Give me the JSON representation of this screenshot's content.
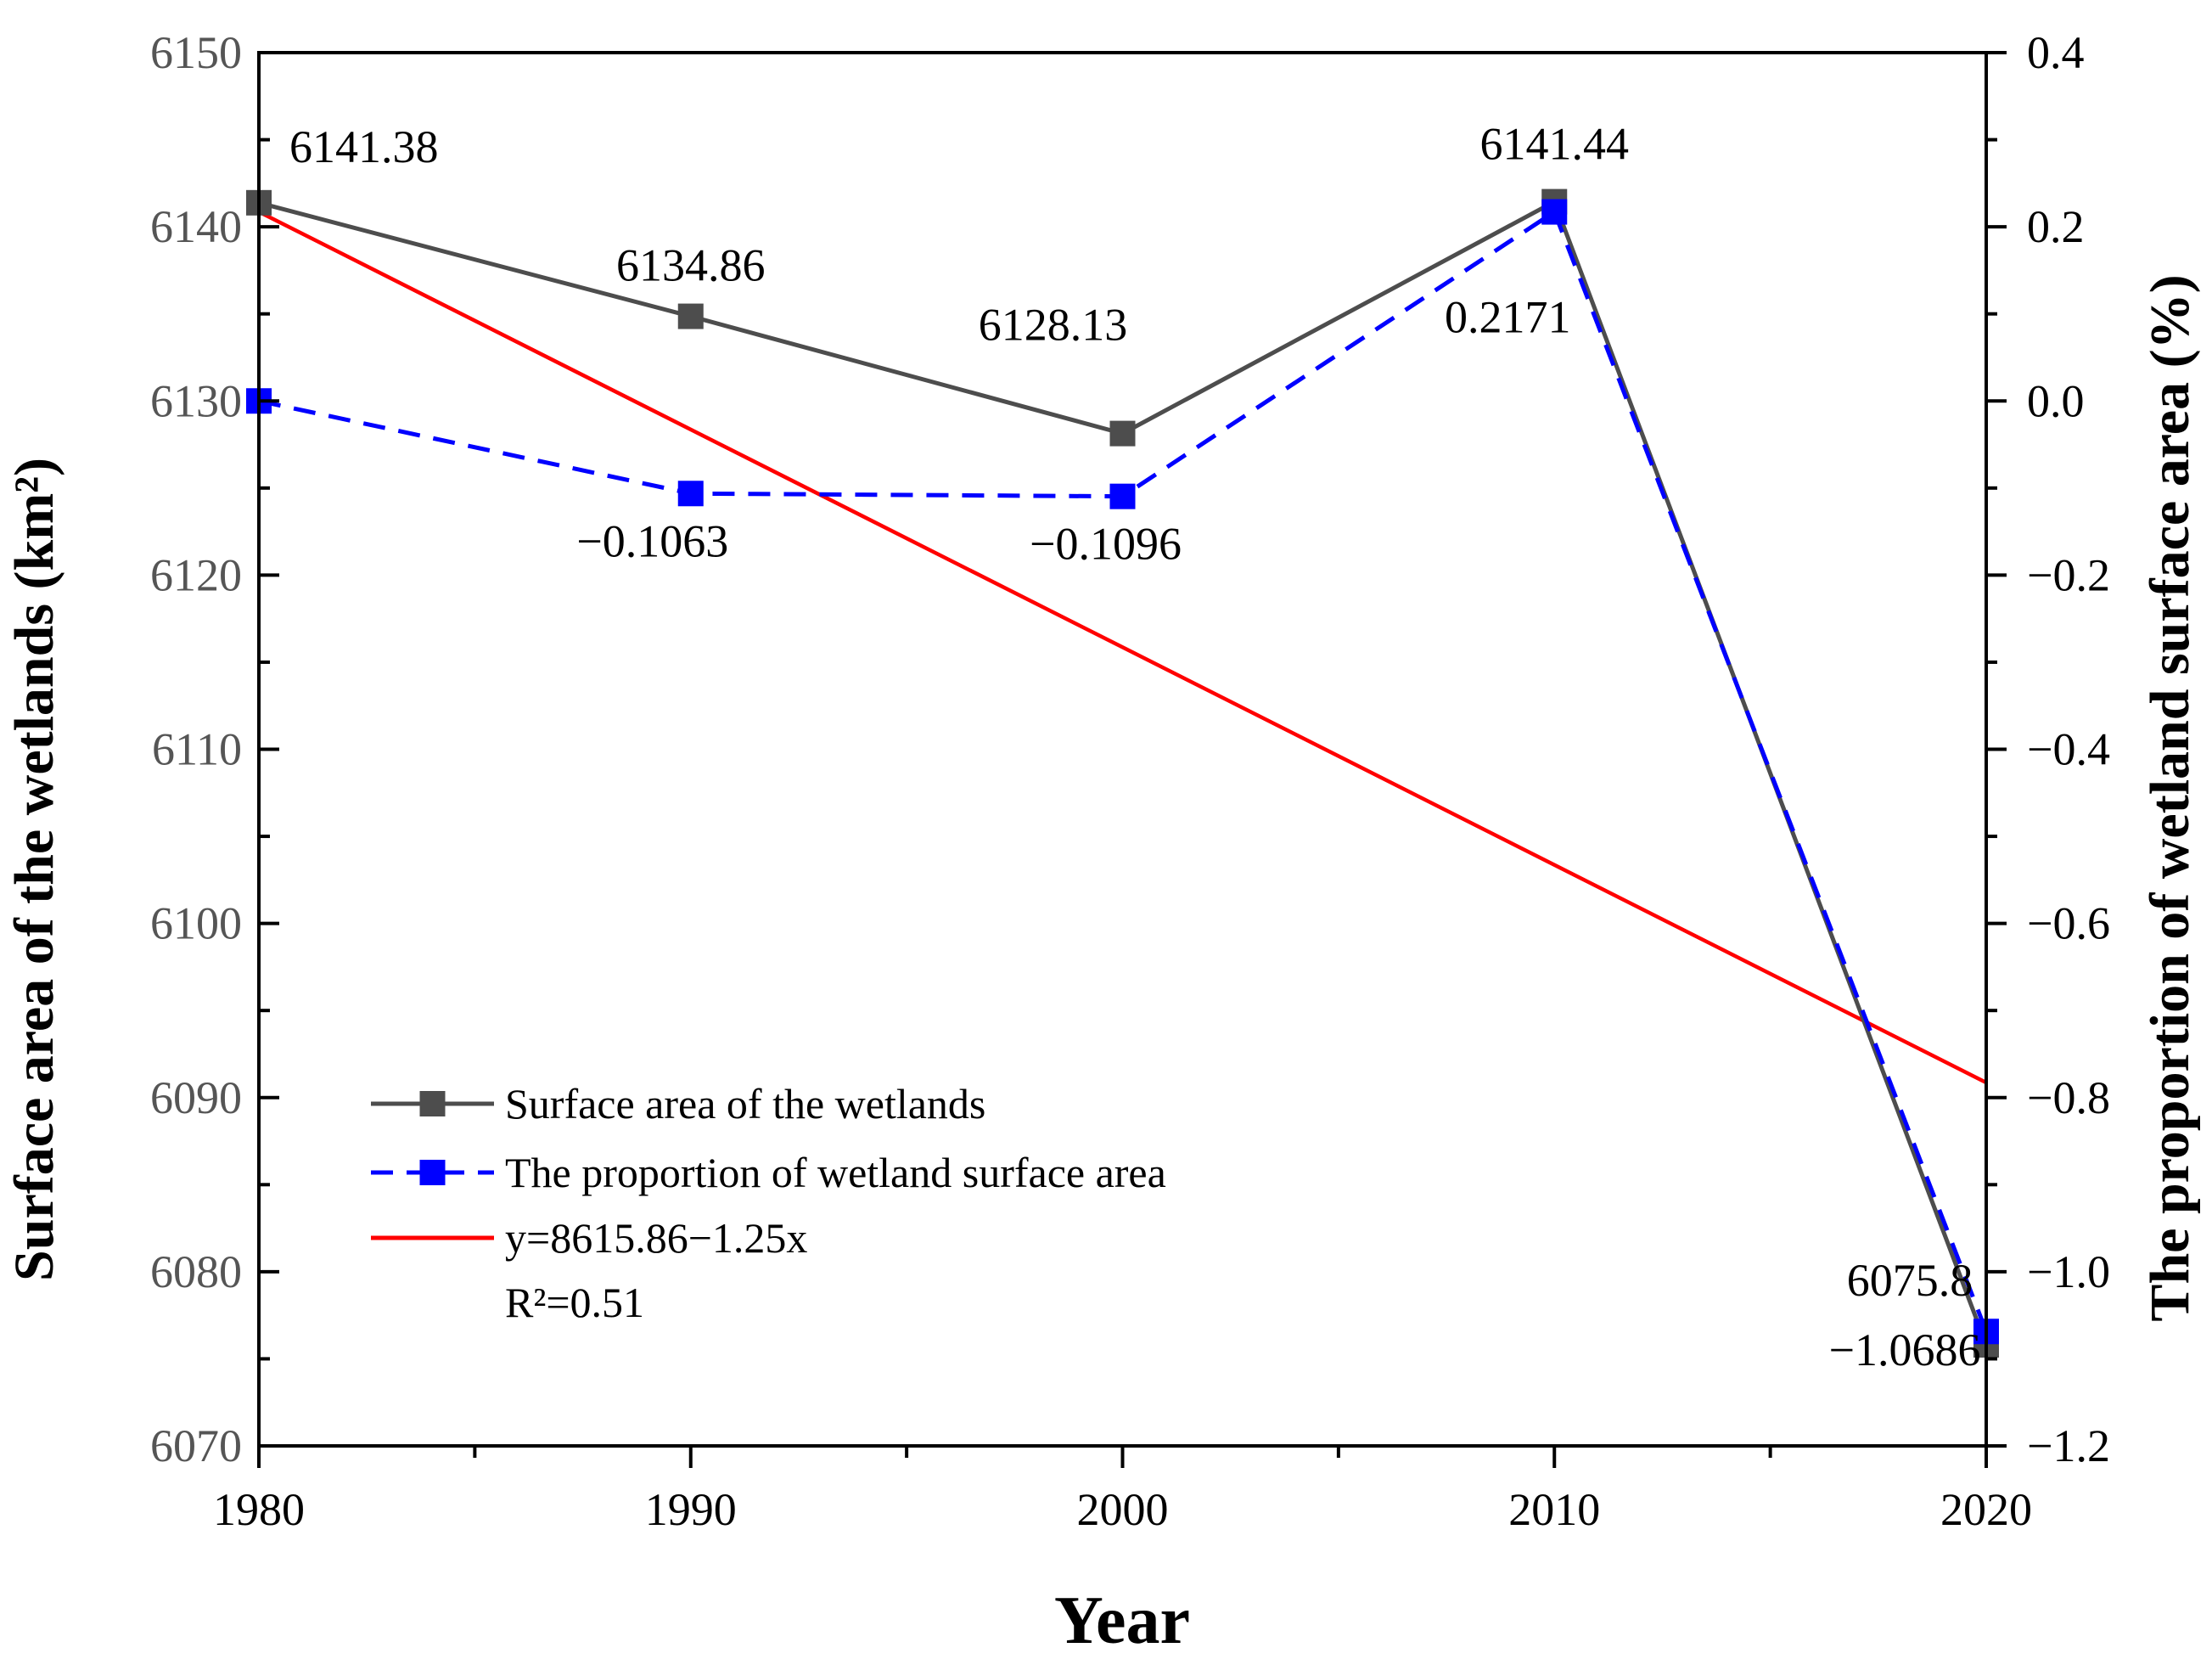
{
  "chart_data": {
    "type": "line",
    "title": "",
    "xlabel": "Year",
    "ylabel_left": "Surface area of the wetlands (km²)",
    "ylabel_right": "The proportion of wetland surface area (%)",
    "x": [
      1980,
      1990,
      2000,
      2010,
      2020
    ],
    "xlim": [
      1980,
      2020
    ],
    "ylim_left": [
      6070,
      6150
    ],
    "ylim_right": [
      -1.2,
      0.4
    ],
    "x_ticks": [
      "1980",
      "1990",
      "2000",
      "2010",
      "2020"
    ],
    "y_ticks_left": [
      "6070",
      "6080",
      "6090",
      "6100",
      "6110",
      "6120",
      "6130",
      "6140",
      "6150"
    ],
    "y_ticks_right": [
      "−1.2",
      "−1.0",
      "−0.8",
      "−0.6",
      "−0.4",
      "−0.2",
      "0.0",
      "0.2",
      "0.4"
    ],
    "series": [
      {
        "name": "Surface area of the wetlands",
        "axis": "left",
        "color": "#4d4d4d",
        "style": "solid",
        "values": [
          6141.38,
          6134.86,
          6128.13,
          6141.44,
          6075.8
        ],
        "labels": [
          "6141.38",
          "6134.86",
          "6128.13",
          "6141.44",
          "6075.8"
        ]
      },
      {
        "name": "The proportion of wetland surface area",
        "axis": "right",
        "color": "#0000ff",
        "style": "dashed",
        "values": [
          0.0,
          -0.1063,
          -0.1096,
          0.2171,
          -1.0686
        ],
        "labels": [
          "",
          "−0.1063",
          "−0.1096",
          "0.2171",
          "−1.0686"
        ]
      },
      {
        "name": "y=8615.86−1.25x",
        "axis": "left",
        "color": "#ff0000",
        "style": "solid",
        "fit": {
          "intercept": 8615.86,
          "slope": -1.25
        },
        "r2_label": "R²=0.51"
      }
    ],
    "legend_position": "bottom-left"
  }
}
